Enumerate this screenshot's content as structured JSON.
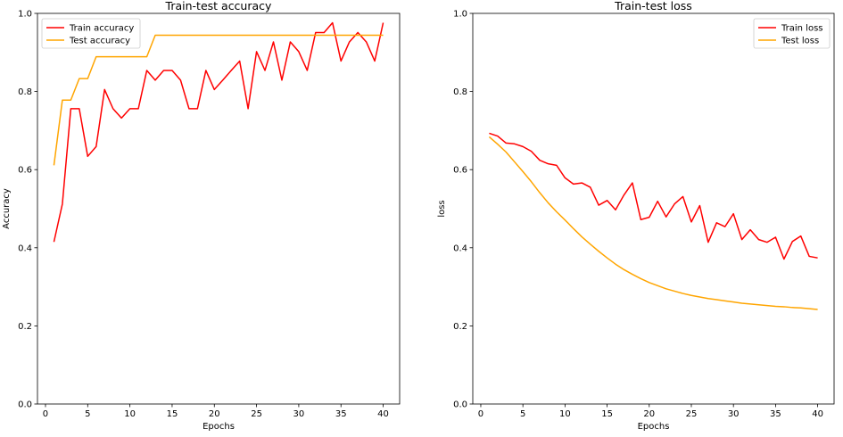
{
  "chart_data": [
    {
      "type": "line",
      "title": "Train-test accuracy",
      "xlabel": "Epochs",
      "ylabel": "Accuracy",
      "xlim": [
        -0.95,
        41.95
      ],
      "ylim": [
        0.0,
        1.0
      ],
      "xticks": [
        0,
        5,
        10,
        15,
        20,
        25,
        30,
        35,
        40
      ],
      "yticks": [
        0.0,
        0.2,
        0.4,
        0.6,
        0.8,
        1.0
      ],
      "grid": false,
      "legend": "top-left",
      "x": [
        1,
        2,
        3,
        4,
        5,
        6,
        7,
        8,
        9,
        10,
        11,
        12,
        13,
        14,
        15,
        16,
        17,
        18,
        19,
        20,
        21,
        22,
        23,
        24,
        25,
        26,
        27,
        28,
        29,
        30,
        31,
        32,
        33,
        34,
        35,
        36,
        37,
        38,
        39,
        40
      ],
      "series": [
        {
          "name": "Train accuracy",
          "color": "#ff0000",
          "values": [
            0.415,
            0.512,
            0.756,
            0.756,
            0.634,
            0.659,
            0.805,
            0.756,
            0.732,
            0.756,
            0.756,
            0.854,
            0.829,
            0.854,
            0.854,
            0.829,
            0.756,
            0.756,
            0.854,
            0.805,
            0.829,
            0.854,
            0.878,
            0.756,
            0.902,
            0.854,
            0.927,
            0.829,
            0.927,
            0.902,
            0.854,
            0.951,
            0.951,
            0.976,
            0.878,
            0.927,
            0.951,
            0.927,
            0.878,
            0.976
          ]
        },
        {
          "name": "Test accuracy",
          "color": "#ffa500",
          "values": [
            0.611,
            0.778,
            0.778,
            0.833,
            0.833,
            0.889,
            0.889,
            0.889,
            0.889,
            0.889,
            0.889,
            0.889,
            0.944,
            0.944,
            0.944,
            0.944,
            0.944,
            0.944,
            0.944,
            0.944,
            0.944,
            0.944,
            0.944,
            0.944,
            0.944,
            0.944,
            0.944,
            0.944,
            0.944,
            0.944,
            0.944,
            0.944,
            0.944,
            0.944,
            0.944,
            0.944,
            0.944,
            0.944,
            0.944,
            0.944
          ]
        }
      ]
    },
    {
      "type": "line",
      "title": "Train-test loss",
      "xlabel": "Epochs",
      "ylabel": "loss",
      "xlim": [
        -0.95,
        41.95
      ],
      "ylim": [
        0.0,
        1.0
      ],
      "xticks": [
        0,
        5,
        10,
        15,
        20,
        25,
        30,
        35,
        40
      ],
      "yticks": [
        0.0,
        0.2,
        0.4,
        0.6,
        0.8,
        1.0
      ],
      "grid": false,
      "legend": "top-right",
      "x": [
        1,
        2,
        3,
        4,
        5,
        6,
        7,
        8,
        9,
        10,
        11,
        12,
        13,
        14,
        15,
        16,
        17,
        18,
        19,
        20,
        21,
        22,
        23,
        24,
        25,
        26,
        27,
        28,
        29,
        30,
        31,
        32,
        33,
        34,
        35,
        36,
        37,
        38,
        39,
        40
      ],
      "series": [
        {
          "name": "Train loss",
          "color": "#ff0000",
          "values": [
            0.693,
            0.686,
            0.668,
            0.666,
            0.659,
            0.647,
            0.624,
            0.615,
            0.611,
            0.579,
            0.563,
            0.566,
            0.555,
            0.509,
            0.521,
            0.497,
            0.535,
            0.566,
            0.472,
            0.478,
            0.519,
            0.479,
            0.512,
            0.531,
            0.466,
            0.508,
            0.414,
            0.464,
            0.454,
            0.487,
            0.421,
            0.446,
            0.421,
            0.414,
            0.427,
            0.371,
            0.416,
            0.43,
            0.378,
            0.374
          ]
        },
        {
          "name": "Test loss",
          "color": "#ffa500",
          "values": [
            0.684,
            0.665,
            0.645,
            0.62,
            0.595,
            0.569,
            0.541,
            0.515,
            0.492,
            0.471,
            0.449,
            0.428,
            0.409,
            0.391,
            0.374,
            0.358,
            0.344,
            0.332,
            0.321,
            0.311,
            0.303,
            0.295,
            0.289,
            0.283,
            0.278,
            0.274,
            0.27,
            0.267,
            0.264,
            0.261,
            0.258,
            0.256,
            0.254,
            0.252,
            0.25,
            0.249,
            0.247,
            0.246,
            0.244,
            0.242
          ]
        }
      ]
    }
  ]
}
